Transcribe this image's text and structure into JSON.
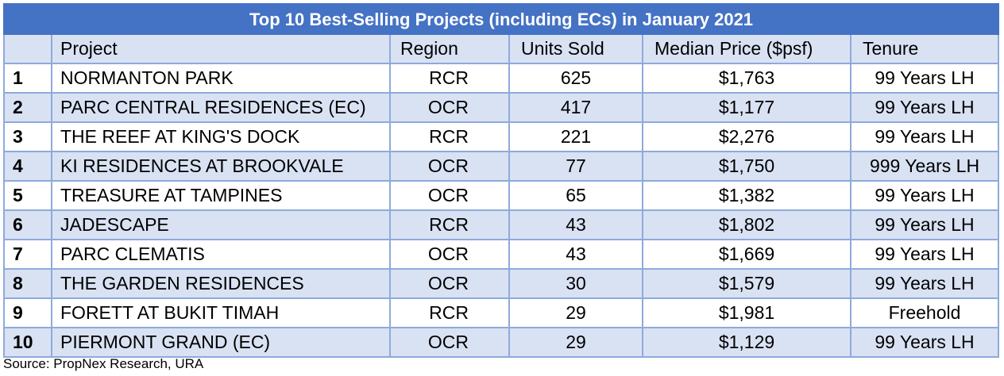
{
  "title": "Top 10 Best-Selling Projects (including ECs) in January 2021",
  "headers": [
    "",
    "Project",
    "Region",
    "Units Sold",
    "Median Price ($psf)",
    "Tenure"
  ],
  "rows": [
    {
      "rank": "1",
      "project": "NORMANTON PARK",
      "region": "RCR",
      "units": "625",
      "price": "$1,763",
      "tenure": "99 Years LH"
    },
    {
      "rank": "2",
      "project": "PARC CENTRAL RESIDENCES (EC)",
      "region": "OCR",
      "units": "417",
      "price": "$1,177",
      "tenure": "99 Years LH"
    },
    {
      "rank": "3",
      "project": "THE REEF AT KING'S DOCK",
      "region": "RCR",
      "units": "221",
      "price": "$2,276",
      "tenure": "99 Years LH"
    },
    {
      "rank": "4",
      "project": "KI RESIDENCES AT BROOKVALE",
      "region": "OCR",
      "units": "77",
      "price": "$1,750",
      "tenure": "999 Years LH"
    },
    {
      "rank": "5",
      "project": "TREASURE AT TAMPINES",
      "region": "OCR",
      "units": "65",
      "price": "$1,382",
      "tenure": "99 Years LH"
    },
    {
      "rank": "6",
      "project": "JADESCAPE",
      "region": "RCR",
      "units": "43",
      "price": "$1,802",
      "tenure": "99 Years LH"
    },
    {
      "rank": "7",
      "project": "PARC CLEMATIS",
      "region": "OCR",
      "units": "43",
      "price": "$1,669",
      "tenure": "99 Years LH"
    },
    {
      "rank": "8",
      "project": "THE GARDEN RESIDENCES",
      "region": "OCR",
      "units": "30",
      "price": "$1,579",
      "tenure": "99 Years LH"
    },
    {
      "rank": "9",
      "project": "FORETT AT BUKIT TIMAH",
      "region": "RCR",
      "units": "29",
      "price": "$1,981",
      "tenure": "Freehold"
    },
    {
      "rank": "10",
      "project": "PIERMONT GRAND (EC)",
      "region": "OCR",
      "units": "29",
      "price": "$1,129",
      "tenure": "99 Years LH"
    }
  ],
  "source": "Source: PropNex Research, URA",
  "colors": {
    "title_bg": "#4472c4",
    "band": "#d9e2f3",
    "border": "#8eaadb"
  }
}
